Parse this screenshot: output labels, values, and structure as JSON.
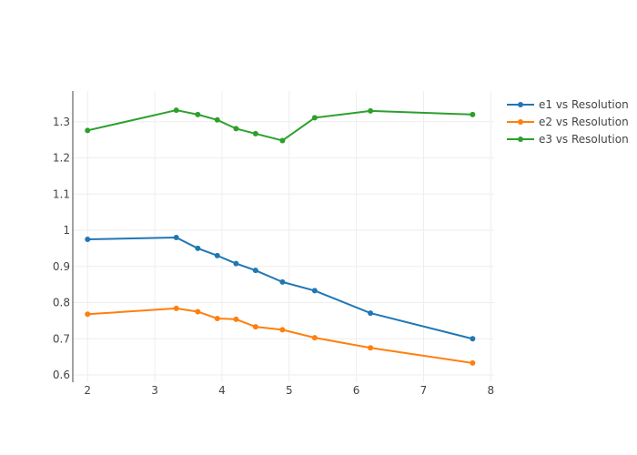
{
  "chart_data": {
    "type": "line",
    "title": "",
    "xlabel": "",
    "ylabel": "",
    "xlim": [
      1.78,
      8.05
    ],
    "ylim": [
      0.58,
      1.385
    ],
    "x_ticks": [
      2,
      3,
      4,
      5,
      6,
      7,
      8
    ],
    "y_ticks": [
      0.6,
      0.7,
      0.8,
      0.9,
      1.0,
      1.1,
      1.2,
      1.3
    ],
    "x_tick_labels": [
      "2",
      "3",
      "4",
      "5",
      "6",
      "7",
      "8"
    ],
    "y_tick_labels": [
      "0.6",
      "0.7",
      "0.8",
      "0.9",
      "1",
      "1.1",
      "1.2",
      "1.3"
    ],
    "grid": true,
    "legend_position": "top-right",
    "series": [
      {
        "name": "e1 vs Resolution",
        "color": "#1f77b4",
        "x": [
          2.0,
          3.32,
          3.64,
          3.93,
          4.21,
          4.5,
          4.9,
          5.38,
          6.21,
          7.73
        ],
        "y": [
          0.975,
          0.98,
          0.95,
          0.93,
          0.908,
          0.889,
          0.857,
          0.833,
          0.771,
          0.7
        ]
      },
      {
        "name": "e2 vs Resolution",
        "color": "#ff7f0e",
        "x": [
          2.0,
          3.32,
          3.64,
          3.93,
          4.21,
          4.5,
          4.9,
          5.38,
          6.21,
          7.73
        ],
        "y": [
          0.768,
          0.784,
          0.775,
          0.756,
          0.754,
          0.733,
          0.725,
          0.703,
          0.675,
          0.633
        ]
      },
      {
        "name": "e3 vs Resolution",
        "color": "#2ca02c",
        "x": [
          2.0,
          3.32,
          3.64,
          3.93,
          4.21,
          4.5,
          4.9,
          5.38,
          6.21,
          7.73
        ],
        "y": [
          1.276,
          1.332,
          1.32,
          1.305,
          1.281,
          1.267,
          1.248,
          1.311,
          1.33,
          1.32
        ]
      }
    ]
  }
}
